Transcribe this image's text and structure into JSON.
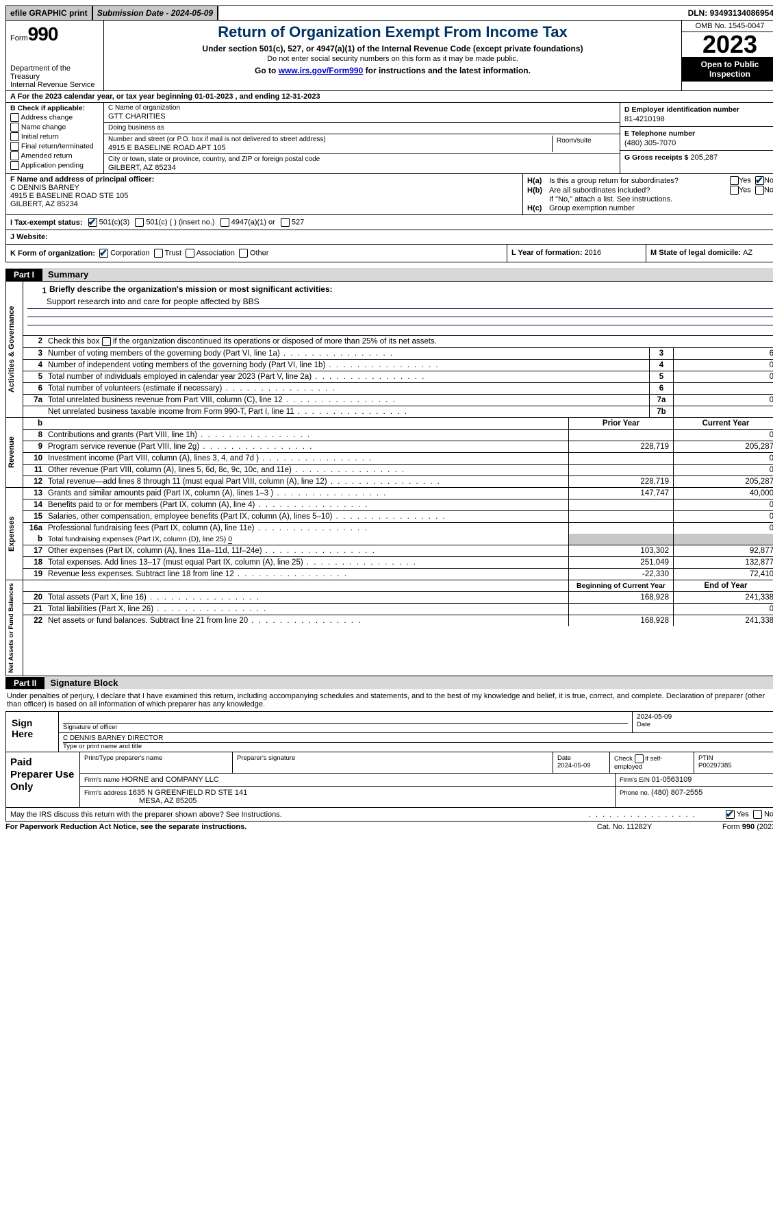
{
  "top": {
    "efile": "efile GRAPHIC print",
    "submission_label": "Submission Date - ",
    "submission_date": "2024-05-09",
    "dln_label": "DLN: ",
    "dln": "93493134086954"
  },
  "header": {
    "form_word": "Form",
    "form_no": "990",
    "dept": "Department of the Treasury\nInternal Revenue Service",
    "title": "Return of Organization Exempt From Income Tax",
    "sub1": "Under section 501(c), 527, or 4947(a)(1) of the Internal Revenue Code (except private foundations)",
    "sub2": "Do not enter social security numbers on this form as it may be made public.",
    "sub3_pre": "Go to ",
    "sub3_link": "www.irs.gov/Form990",
    "sub3_post": " for instructions and the latest information.",
    "omb": "OMB No. 1545-0047",
    "year": "2023",
    "open": "Open to Public Inspection"
  },
  "lineA": {
    "text_pre": "A For the 2023 calendar year, or tax year beginning ",
    "begin": "01-01-2023",
    "mid": "   , and ending ",
    "end": "12-31-2023"
  },
  "boxB": {
    "title": "B Check if applicable:",
    "opts": [
      "Address change",
      "Name change",
      "Initial return",
      "Final return/terminated",
      "Amended return",
      "Application pending"
    ]
  },
  "boxC": {
    "name_lab": "C Name of organization",
    "name": "GTT CHARITIES",
    "dba_lab": "Doing business as",
    "dba": "",
    "street_lab": "Number and street (or P.O. box if mail is not delivered to street address)",
    "street": "4915 E BASELINE ROAD APT 105",
    "room_lab": "Room/suite",
    "city_lab": "City or town, state or province, country, and ZIP or foreign postal code",
    "city": "GILBERT, AZ  85234"
  },
  "boxD": {
    "lab": "D Employer identification number",
    "val": "81-4210198"
  },
  "boxE": {
    "lab": "E Telephone number",
    "val": "(480) 305-7070"
  },
  "boxG": {
    "lab": "G Gross receipts $",
    "val": "205,287"
  },
  "boxF": {
    "lab": "F  Name and address of principal officer:",
    "l1": "C DENNIS BARNEY",
    "l2": "4915 E BASELINE ROAD STE 105",
    "l3": "GILBERT, AZ  85234"
  },
  "boxH": {
    "a_lab": "H(a)",
    "a_txt": "Is this a group return for subordinates?",
    "b_lab": "H(b)",
    "b_txt": "Are all subordinates included?",
    "b_note": "If \"No,\" attach a list. See instructions.",
    "c_lab": "H(c)",
    "c_txt": "Group exemption number",
    "yes": "Yes",
    "no": "No",
    "a_yes": false,
    "a_no": true,
    "b_yes": false,
    "b_no": false
  },
  "rowI": {
    "lab": "I  Tax-exempt status:",
    "o1": "501(c)(3)",
    "o2": "501(c) (  ) (insert no.)",
    "o3": "4947(a)(1) or",
    "o4": "527",
    "o1_checked": true
  },
  "rowJ": {
    "lab": "J  Website:",
    "val": ""
  },
  "rowK": {
    "lab": "K Form of organization:",
    "o1": "Corporation",
    "o2": "Trust",
    "o3": "Association",
    "o4": "Other",
    "o1_checked": true
  },
  "rowL": {
    "lab": "L Year of formation: ",
    "val": "2016"
  },
  "rowM": {
    "lab": "M State of legal domicile: ",
    "val": "AZ"
  },
  "part1": {
    "tag": "Part I",
    "title": "Summary"
  },
  "gov": {
    "label": "Activities & Governance",
    "q1": "Briefly describe the organization's mission or most significant activities:",
    "q1v": "Support research into and care for people affected by BBS",
    "q2": "Check this box      if the organization discontinued its operations or disposed of more than 25% of its net assets.",
    "rows": [
      {
        "n": "3",
        "t": "Number of voting members of the governing body (Part VI, line 1a)",
        "bn": "3",
        "v": "6"
      },
      {
        "n": "4",
        "t": "Number of independent voting members of the governing body (Part VI, line 1b)",
        "bn": "4",
        "v": "0"
      },
      {
        "n": "5",
        "t": "Total number of individuals employed in calendar year 2023 (Part V, line 2a)",
        "bn": "5",
        "v": "0"
      },
      {
        "n": "6",
        "t": "Total number of volunteers (estimate if necessary)",
        "bn": "6",
        "v": ""
      },
      {
        "n": "7a",
        "t": "Total unrelated business revenue from Part VIII, column (C), line 12",
        "bn": "7a",
        "v": "0"
      },
      {
        "n": "",
        "t": "Net unrelated business taxable income from Form 990-T, Part I, line 11",
        "bn": "7b",
        "v": ""
      }
    ]
  },
  "rev": {
    "label": "Revenue",
    "hdr_b": "b",
    "prior": "Prior Year",
    "curr": "Current Year",
    "rows": [
      {
        "n": "8",
        "t": "Contributions and grants (Part VIII, line 1h)",
        "p": "",
        "c": "0"
      },
      {
        "n": "9",
        "t": "Program service revenue (Part VIII, line 2g)",
        "p": "228,719",
        "c": "205,287"
      },
      {
        "n": "10",
        "t": "Investment income (Part VIII, column (A), lines 3, 4, and 7d )",
        "p": "",
        "c": "0"
      },
      {
        "n": "11",
        "t": "Other revenue (Part VIII, column (A), lines 5, 6d, 8c, 9c, 10c, and 11e)",
        "p": "",
        "c": "0"
      },
      {
        "n": "12",
        "t": "Total revenue—add lines 8 through 11 (must equal Part VIII, column (A), line 12)",
        "p": "228,719",
        "c": "205,287"
      }
    ]
  },
  "exp": {
    "label": "Expenses",
    "rows": [
      {
        "n": "13",
        "t": "Grants and similar amounts paid (Part IX, column (A), lines 1–3 )",
        "p": "147,747",
        "c": "40,000"
      },
      {
        "n": "14",
        "t": "Benefits paid to or for members (Part IX, column (A), line 4)",
        "p": "",
        "c": "0"
      },
      {
        "n": "15",
        "t": "Salaries, other compensation, employee benefits (Part IX, column (A), lines 5–10)",
        "p": "",
        "c": "0"
      },
      {
        "n": "16a",
        "t": "Professional fundraising fees (Part IX, column (A), line 11e)",
        "p": "",
        "c": "0"
      }
    ],
    "row16b_n": "b",
    "row16b_t": "Total fundraising expenses (Part IX, column (D), line 25)",
    "row16b_v": "0",
    "rows2": [
      {
        "n": "17",
        "t": "Other expenses (Part IX, column (A), lines 11a–11d, 11f–24e)",
        "p": "103,302",
        "c": "92,877"
      },
      {
        "n": "18",
        "t": "Total expenses. Add lines 13–17 (must equal Part IX, column (A), line 25)",
        "p": "251,049",
        "c": "132,877"
      },
      {
        "n": "19",
        "t": "Revenue less expenses. Subtract line 18 from line 12",
        "p": "-22,330",
        "c": "72,410"
      }
    ]
  },
  "net": {
    "label": "Net Assets or Fund Balances",
    "hdr_p": "Beginning of Current Year",
    "hdr_c": "End of Year",
    "rows": [
      {
        "n": "20",
        "t": "Total assets (Part X, line 16)",
        "p": "168,928",
        "c": "241,338"
      },
      {
        "n": "21",
        "t": "Total liabilities (Part X, line 26)",
        "p": "",
        "c": "0"
      },
      {
        "n": "22",
        "t": "Net assets or fund balances. Subtract line 21 from line 20",
        "p": "168,928",
        "c": "241,338"
      }
    ]
  },
  "part2": {
    "tag": "Part II",
    "title": "Signature Block"
  },
  "decl": "Under penalties of perjury, I declare that I have examined this return, including accompanying schedules and statements, and to the best of my knowledge and belief, it is true, correct, and complete. Declaration of preparer (other than officer) is based on all information of which preparer has any knowledge.",
  "sign": {
    "here": "Sign Here",
    "sig_lab": "Signature of officer",
    "date_lab": "Date",
    "date_v": "2024-05-09",
    "name": "C DENNIS BARNEY DIRECTOR",
    "name_lab": "Type or print name and title"
  },
  "paid": {
    "here": "Paid Preparer Use Only",
    "h1": "Print/Type preparer's name",
    "h2": "Preparer's signature",
    "h3": "Date",
    "h3v": "2024-05-09",
    "h4": "Check       if self-employed",
    "h5": "PTIN",
    "h5v": "P00297385",
    "firm_lab": "Firm's name    ",
    "firm": "HORNE and COMPANY LLC",
    "ein_lab": "Firm's EIN  ",
    "ein": "01-0563109",
    "addr_lab": "Firm's address ",
    "addr1": "1635 N GREENFIELD RD STE 141",
    "addr2": "MESA, AZ  85205",
    "phone_lab": "Phone no. ",
    "phone": "(480) 807-2555"
  },
  "discuss": {
    "q": "May the IRS discuss this return with the preparer shown above? See Instructions.",
    "yes": "Yes",
    "no": "No",
    "yes_checked": true,
    "no_checked": false
  },
  "footer": {
    "f1": "For Paperwork Reduction Act Notice, see the separate instructions.",
    "f2": "Cat. No. 11282Y",
    "f3": "Form 990 (2023)"
  }
}
